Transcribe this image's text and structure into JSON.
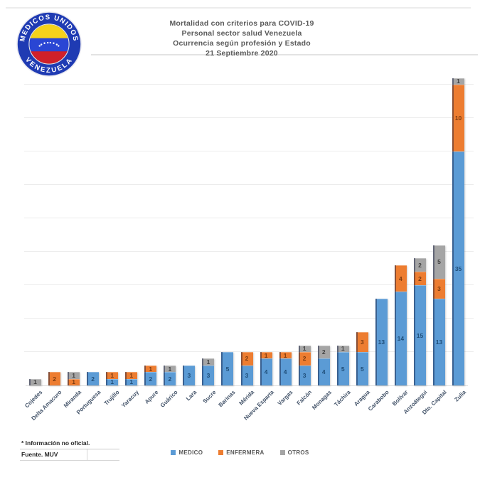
{
  "header": {
    "title_lines": [
      "Mortalidad con criterios para COVID-19",
      "Personal sector salud Venezuela",
      "Ocurrencia según profesión y Estado",
      "21 Septiembre 2020"
    ],
    "logo": {
      "top_text": "MEDICOS UNIDOS",
      "bottom_text": "VENEZUELA"
    }
  },
  "footer": {
    "note": "* Información no oficial.",
    "source": "Fuente. MUV"
  },
  "legend": [
    {
      "label": "MEDICO",
      "color": "#5b9bd5"
    },
    {
      "label": "ENFERMERA",
      "color": "#ed7d31"
    },
    {
      "label": "OTROS",
      "color": "#a5a5a5"
    }
  ],
  "chart_data": {
    "type": "bar",
    "stacked": true,
    "title": "Mortalidad con criterios para COVID-19 — Personal sector salud Venezuela — Ocurrencia según profesión y Estado — 21 Septiembre 2020",
    "xlabel": "",
    "ylabel": "",
    "ylim": [
      0,
      46
    ],
    "gridline_step": 5,
    "grid": true,
    "y_axis_labels_visible": false,
    "legend_position": "bottom",
    "categories": [
      "Cojedes",
      "Delta Amacuro",
      "Miranda",
      "Portuguesa",
      "Trujillo",
      "Yaracuy",
      "Apure",
      "Guárico",
      "Lara",
      "Sucre",
      "Barinas",
      "Mérida",
      "Nueva Esparta",
      "Vargas",
      "Falcón",
      "Monagas",
      "Táchira",
      "Aragua",
      "Carabobo",
      "Bolívar",
      "Anzoátegui",
      "Dto. Capital",
      "Zulia"
    ],
    "series": [
      {
        "name": "MEDICO",
        "color": "#5b9bd5",
        "label_color": "#1f4e79",
        "values": [
          0,
          0,
          0,
          2,
          1,
          1,
          2,
          2,
          3,
          3,
          5,
          3,
          4,
          4,
          3,
          4,
          5,
          5,
          13,
          14,
          15,
          13,
          35
        ]
      },
      {
        "name": "ENFERMERA",
        "color": "#ed7d31",
        "label_color": "#7b3a10",
        "values": [
          0,
          2,
          1,
          0,
          1,
          1,
          1,
          0,
          0,
          0,
          0,
          2,
          1,
          1,
          2,
          0,
          0,
          3,
          0,
          4,
          2,
          3,
          10
        ]
      },
      {
        "name": "OTROS",
        "color": "#a5a5a5",
        "label_color": "#3f3f3f",
        "values": [
          1,
          0,
          1,
          0,
          0,
          0,
          0,
          1,
          0,
          1,
          0,
          0,
          0,
          0,
          1,
          2,
          1,
          0,
          0,
          0,
          2,
          5,
          1
        ]
      }
    ]
  }
}
